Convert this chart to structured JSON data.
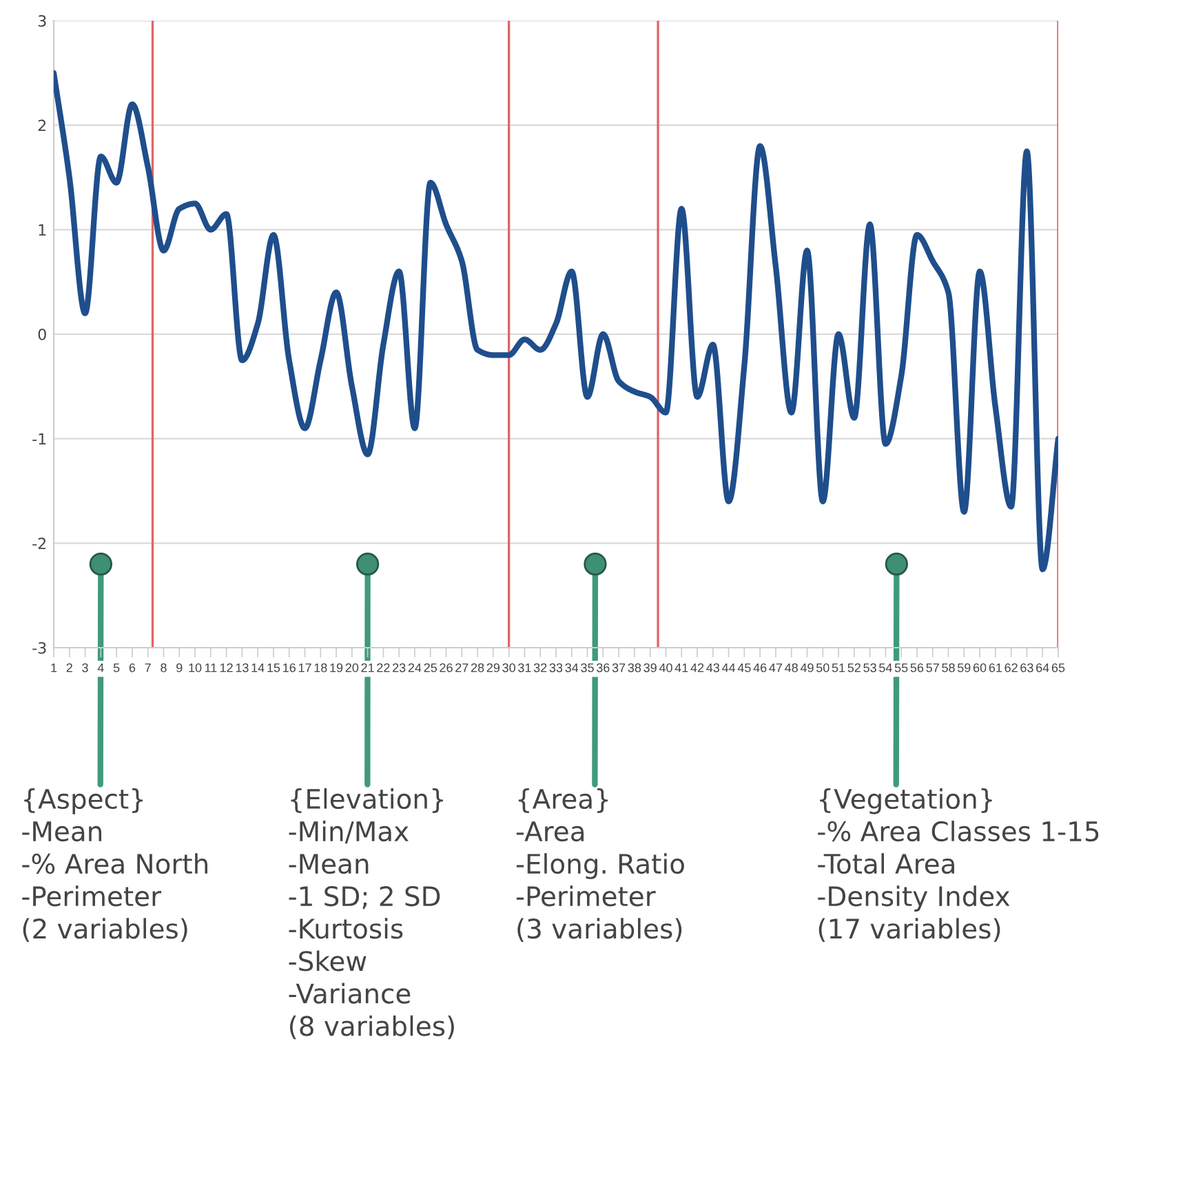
{
  "chart_data": {
    "type": "line",
    "x": [
      1,
      2,
      3,
      4,
      5,
      6,
      7,
      8,
      9,
      10,
      11,
      12,
      13,
      14,
      15,
      16,
      17,
      18,
      19,
      20,
      21,
      22,
      23,
      24,
      25,
      26,
      27,
      28,
      29,
      30,
      31,
      32,
      33,
      34,
      35,
      36,
      37,
      38,
      39,
      40,
      41,
      42,
      43,
      44,
      45,
      46,
      47,
      48,
      49,
      50,
      51,
      52,
      53,
      54,
      55,
      56,
      57,
      58,
      59,
      60,
      61,
      62,
      63,
      64,
      65
    ],
    "series": [
      {
        "color": "#1f4e8c",
        "values": [
          2.5,
          1.5,
          0.2,
          1.7,
          1.45,
          2.2,
          1.6,
          0.8,
          1.2,
          1.25,
          1.0,
          1.15,
          -0.25,
          0.1,
          0.95,
          -0.25,
          -0.9,
          -0.25,
          0.4,
          -0.5,
          -1.15,
          -0.1,
          0.6,
          -0.9,
          1.45,
          1.05,
          0.7,
          -0.15,
          -0.2,
          -0.2,
          -0.05,
          -0.15,
          0.1,
          0.6,
          -0.6,
          0.0,
          -0.45,
          -0.55,
          -0.6,
          -0.75,
          1.2,
          -0.6,
          -0.1,
          -1.6,
          -0.3,
          1.8,
          0.65,
          -0.75,
          0.8,
          -1.6,
          0.0,
          -0.8,
          1.05,
          -1.05,
          -0.4,
          0.95,
          0.7,
          0.4,
          -1.7,
          0.6,
          -0.7,
          -1.65,
          1.75,
          -2.25,
          -1.0
        ]
      }
    ],
    "xlim": [
      1,
      65
    ],
    "xticks": [
      1,
      2,
      3,
      4,
      5,
      6,
      7,
      8,
      9,
      10,
      11,
      12,
      13,
      14,
      15,
      16,
      17,
      18,
      19,
      20,
      21,
      22,
      23,
      24,
      25,
      26,
      27,
      28,
      29,
      30,
      31,
      32,
      33,
      34,
      35,
      36,
      37,
      38,
      39,
      40,
      41,
      42,
      43,
      44,
      45,
      46,
      47,
      48,
      49,
      50,
      51,
      52,
      53,
      54,
      55,
      56,
      57,
      58,
      59,
      60,
      61,
      62,
      63,
      64,
      65
    ],
    "ylim": [
      -3,
      3
    ],
    "yticks": [
      -3,
      -2,
      -1,
      0,
      1,
      2,
      3
    ],
    "grid": "y",
    "marker": "none",
    "line_style": "solid",
    "ref_lines": [
      {
        "axis": "x",
        "value": 7.3,
        "color": "#e06666"
      },
      {
        "axis": "x",
        "value": 30,
        "color": "#e06666"
      },
      {
        "axis": "x",
        "value": 39.5,
        "color": "#e06666"
      },
      {
        "axis": "x",
        "value": 65,
        "color": "#e06666"
      }
    ],
    "annotations": [
      {
        "text": "{Aspect}\n-Mean\n-% Area North\n-Perimeter\n(2 variables)",
        "x": 4,
        "y": -2.2
      },
      {
        "text": "{Elevation}\n-Min/Max\n-Mean\n-1 SD; 2 SD\n-Kurtosis\n-Skew\n-Variance\n(8 variables)",
        "x": 21,
        "y": -2.2
      },
      {
        "text": "{Area}\n-Area\n-Elong. Ratio\n-Perimeter\n(3 variables)",
        "x": 35.5,
        "y": -2.2
      },
      {
        "text": "{Vegetation}\n-% Area Classes 1-15\n-Total Area\n-Density Index\n(17 variables)",
        "x": 54.7,
        "y": -2.2
      }
    ]
  }
}
